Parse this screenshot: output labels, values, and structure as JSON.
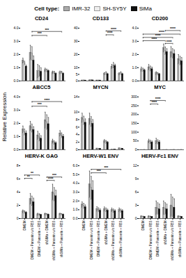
{
  "chart_data": {
    "type": "bar",
    "ylabel": "Relative Expression",
    "legend": "top",
    "legend_title": "Cell type:",
    "categories": [
      "DMEM",
      "DMEM + Panserin w/o FBS",
      "DMEM + Panserin + FBS",
      "shSiMa + DMEM",
      "shSiMa + Panserin w/o FBS",
      "shSiMa + Panserin + FBS"
    ],
    "panels": [
      {
        "title": "CD24",
        "ylim": [
          0,
          4
        ],
        "yticks": [
          0,
          1,
          2,
          3,
          4
        ],
        "series": [
          {
            "name": "IMR-32",
            "color": "#aaaaaa",
            "values": [
              1.55,
              2.15,
              0.75,
              0.85,
              0.65,
              0.65
            ],
            "errors": [
              0.18,
              0.55,
              0.5,
              0.12,
              0.1,
              0.1
            ]
          },
          {
            "name": "SH-SY5Y",
            "color": "#eeeeee",
            "values": [
              1.35,
              2.1,
              0.75,
              0.8,
              0.65,
              0.65
            ],
            "errors": [
              0.15,
              0.5,
              0.4,
              0.1,
              0.08,
              0.08
            ]
          },
          {
            "name": "SiMa",
            "color": "#111111",
            "values": [
              1.1,
              1.55,
              0.7,
              0.75,
              0.55,
              0.55
            ],
            "errors": [
              0.1,
              0.35,
              0.3,
              0.08,
              0.06,
              0.06
            ]
          }
        ],
        "annotations": [
          {
            "text": "***",
            "x1": "DMEM + Panserin w/o FBS",
            "x2": "shSiMa + DMEM",
            "y": 3.45
          },
          {
            "text": "***",
            "x1": "DMEM + Panserin w/o FBS",
            "x2": "shSiMa + Panserin + FBS",
            "y": 3.75
          }
        ]
      },
      {
        "title": "CD133",
        "ylim": [
          0,
          40
        ],
        "yticks": [
          0,
          5,
          10,
          20,
          30,
          40
        ],
        "series": [
          {
            "name": "IMR-32",
            "color": "#aaaaaa",
            "values": [
              0.5,
              0.6,
              0.5,
              5.5,
              11.0,
              5.5
            ],
            "errors": [
              0.08,
              0.08,
              0.08,
              0.8,
              1.5,
              0.8
            ]
          },
          {
            "name": "SH-SY5Y",
            "color": "#eeeeee",
            "values": [
              0.55,
              0.65,
              0.5,
              6.0,
              12.0,
              6.0
            ],
            "errors": [
              0.1,
              0.1,
              0.1,
              1.0,
              2.0,
              1.0
            ]
          },
          {
            "name": "SiMa",
            "color": "#111111",
            "values": [
              0.45,
              0.55,
              0.45,
              5.2,
              11.5,
              5.2
            ],
            "errors": [
              0.06,
              0.06,
              0.06,
              0.7,
              1.2,
              0.7
            ]
          }
        ],
        "annotations": [
          {
            "text": "****",
            "x1": "shSiMa + DMEM",
            "x2": "shSiMa + Panserin w/o FBS",
            "y": 35
          },
          {
            "text": "****",
            "x1": "shSiMa + DMEM",
            "x2": "shSiMa + Panserin + FBS",
            "y": 38
          }
        ]
      },
      {
        "title": "CD200",
        "ylim": [
          0,
          4
        ],
        "yticks": [
          0,
          1,
          2,
          3,
          4
        ],
        "series": [
          {
            "name": "IMR-32",
            "color": "#aaaaaa",
            "values": [
              0.9,
              1.05,
              0.6,
              2.5,
              2.2,
              1.65
            ],
            "errors": [
              0.15,
              0.2,
              0.1,
              0.3,
              0.4,
              0.35
            ]
          },
          {
            "name": "SH-SY5Y",
            "color": "#eeeeee",
            "values": [
              0.85,
              0.95,
              0.55,
              2.3,
              2.1,
              1.55
            ],
            "errors": [
              0.12,
              0.18,
              0.09,
              0.28,
              0.35,
              0.32
            ]
          },
          {
            "name": "SiMa",
            "color": "#111111",
            "values": [
              0.8,
              0.9,
              0.5,
              2.2,
              2.05,
              1.5
            ],
            "errors": [
              0.1,
              0.15,
              0.08,
              0.25,
              0.3,
              0.28
            ]
          }
        ],
        "annotations": [
          {
            "text": "****",
            "x1": "DMEM",
            "x2": "shSiMa + DMEM",
            "y": 3.05
          },
          {
            "text": "****",
            "x1": "DMEM",
            "x2": "shSiMa + Panserin w/o FBS",
            "y": 3.3
          },
          {
            "text": "****",
            "x1": "DMEM",
            "x2": "shSiMa + Panserin + FBS",
            "y": 3.55
          },
          {
            "text": "****",
            "x1": "shSiMa + DMEM",
            "x2": "shSiMa + Panserin w/o FBS",
            "y": 2.85
          },
          {
            "text": "****",
            "x1": "shSiMa + DMEM",
            "x2": "shSiMa + Panserin + FBS",
            "y": 3.82
          }
        ]
      },
      {
        "title": "ABCC5",
        "ylim": [
          0,
          4
        ],
        "yticks": [
          0,
          1,
          2,
          3,
          4
        ],
        "series": [
          {
            "name": "IMR-32",
            "color": "#aaaaaa",
            "values": [
              1.55,
              1.8,
              1.1,
              2.25,
              0.65,
              1.25
            ],
            "errors": [
              0.25,
              0.35,
              0.3,
              0.6,
              0.15,
              0.2
            ]
          },
          {
            "name": "SH-SY5Y",
            "color": "#eeeeee",
            "values": [
              1.35,
              1.65,
              0.95,
              2.1,
              0.55,
              1.1
            ],
            "errors": [
              0.22,
              0.3,
              0.28,
              0.55,
              0.12,
              0.18
            ]
          },
          {
            "name": "SiMa",
            "color": "#111111",
            "values": [
              1.25,
              1.5,
              0.85,
              1.95,
              0.5,
              1.0
            ],
            "errors": [
              0.18,
              0.25,
              0.22,
              0.5,
              0.1,
              0.15
            ]
          }
        ],
        "annotations": [
          {
            "text": "***",
            "x1": "DMEM + Panserin w/o FBS",
            "x2": "shSiMa + DMEM",
            "y": 3.3
          },
          {
            "text": "****",
            "x1": "DMEM + Panserin w/o FBS",
            "x2": "shSiMa + Panserin + FBS",
            "y": 3.65
          }
        ]
      },
      {
        "title": "MYCN",
        "ylim": [
          0,
          14
        ],
        "yticks": [
          0,
          2,
          4,
          6,
          8,
          10,
          14
        ],
        "series": [
          {
            "name": "IMR-32",
            "color": "#aaaaaa",
            "values": [
              8.5,
              8.2,
              0.35,
              2.3,
              0.05,
              0.4
            ],
            "errors": [
              1.2,
              1.5,
              0.05,
              0.4,
              0.01,
              0.06
            ]
          },
          {
            "name": "SH-SY5Y",
            "color": "#eeeeee",
            "values": [
              7.8,
              7.5,
              0.32,
              2.1,
              0.04,
              0.35
            ],
            "errors": [
              1.1,
              1.3,
              0.05,
              0.35,
              0.01,
              0.05
            ]
          },
          {
            "name": "SiMa",
            "color": "#111111",
            "values": [
              7.2,
              6.9,
              0.28,
              1.9,
              0.04,
              0.32
            ],
            "errors": [
              1.0,
              1.1,
              0.04,
              0.3,
              0.01,
              0.04
            ]
          }
        ],
        "annotations": []
      },
      {
        "title": "MYC",
        "ylim": [
          0,
          300
        ],
        "yticks": [
          0,
          50,
          100,
          150,
          200,
          250,
          300
        ],
        "series": [
          {
            "name": "IMR-32",
            "color": "#aaaaaa",
            "values": [
              0.05,
              50.0,
              50.0,
              0.05,
              0.05,
              0.05
            ],
            "errors": [
              0.01,
              10.0,
              15.0,
              0.01,
              0.01,
              0.01
            ]
          },
          {
            "name": "SH-SY5Y",
            "color": "#eeeeee",
            "values": [
              0.04,
              45.0,
              45.0,
              0.04,
              0.04,
              0.04
            ],
            "errors": [
              0.01,
              9.0,
              12.0,
              0.01,
              0.01,
              0.01
            ]
          },
          {
            "name": "SiMa",
            "color": "#111111",
            "values": [
              0.04,
              42.0,
              42.0,
              0.04,
              0.04,
              0.04
            ],
            "errors": [
              0.01,
              8.0,
              10.0,
              0.01,
              0.01,
              0.01
            ]
          }
        ],
        "annotations": [
          {
            "text": "****",
            "x1": "DMEM + Panserin w/o FBS",
            "x2": "DMEM + Panserin + FBS",
            "y": 260
          },
          {
            "text": "****",
            "x1": "DMEM + Panserin w/o FBS",
            "x2": "shSiMa + DMEM",
            "y": 280
          }
        ]
      },
      {
        "title": "HERV-K GAG",
        "ylim": [
          0,
          8
        ],
        "yticks": [
          0,
          2,
          4,
          6,
          8
        ],
        "series": [
          {
            "name": "IMR-32",
            "color": "#aaaaaa",
            "values": [
              1.1,
              3.0,
              0.65,
              0.7,
              4.0,
              0.7
            ],
            "errors": [
              0.2,
              0.8,
              0.15,
              0.12,
              1.2,
              0.12
            ]
          },
          {
            "name": "SH-SY5Y",
            "color": "#eeeeee",
            "values": [
              1.0,
              2.7,
              0.6,
              0.65,
              3.7,
              0.65
            ],
            "errors": [
              0.18,
              0.7,
              0.12,
              0.1,
              1.0,
              0.1
            ]
          },
          {
            "name": "SiMa",
            "color": "#111111",
            "values": [
              0.9,
              2.5,
              0.55,
              0.6,
              3.4,
              0.6
            ],
            "errors": [
              0.15,
              0.6,
              0.1,
              0.09,
              0.9,
              0.09
            ]
          }
        ],
        "annotations": [
          {
            "text": "**",
            "x1": "DMEM",
            "x2": "DMEM + Panserin w/o FBS",
            "y": 6.1
          },
          {
            "text": "**",
            "x1": "DMEM",
            "x2": "DMEM + Panserin + FBS",
            "y": 6.6
          },
          {
            "text": "****",
            "x1": "shSiMa + DMEM",
            "x2": "shSiMa + Panserin w/o FBS",
            "y": 5.8
          },
          {
            "text": "***",
            "x1": "shSiMa + DMEM",
            "x2": "shSiMa + Panserin + FBS",
            "y": 6.3
          }
        ]
      },
      {
        "title": "HERV-W1 ENV",
        "ylim": [
          0,
          6
        ],
        "yticks": [
          0,
          1,
          2,
          3,
          4,
          5,
          6
        ],
        "series": [
          {
            "name": "IMR-32",
            "color": "#aaaaaa",
            "values": [
              1.6,
              3.9,
              1.1,
              1.1,
              1.0,
              1.0
            ],
            "errors": [
              0.3,
              1.5,
              0.25,
              0.22,
              0.2,
              0.2
            ]
          },
          {
            "name": "SH-SY5Y",
            "color": "#eeeeee",
            "values": [
              1.45,
              3.5,
              1.0,
              1.0,
              0.9,
              0.9
            ],
            "errors": [
              0.28,
              1.3,
              0.22,
              0.2,
              0.18,
              0.18
            ]
          },
          {
            "name": "SiMa",
            "color": "#111111",
            "values": [
              1.3,
              3.2,
              0.9,
              0.9,
              0.85,
              0.85
            ],
            "errors": [
              0.25,
              1.1,
              0.2,
              0.18,
              0.15,
              0.15
            ]
          }
        ],
        "annotations": [
          {
            "text": "***",
            "x1": "DMEM + Panserin w/o FBS",
            "x2": "shSiMa + DMEM",
            "y": 5.2
          },
          {
            "text": "***",
            "x1": "DMEM + Panserin w/o FBS",
            "x2": "shSiMa + Panserin + FBS",
            "y": 5.6
          }
        ]
      },
      {
        "title": "HERV-Fc1 ENV",
        "ylim": [
          0,
          12
        ],
        "yticks": [
          0,
          3,
          6,
          9,
          12
        ],
        "series": [
          {
            "name": "IMR-32",
            "color": "#aaaaaa",
            "values": [
              0.5,
              0.5,
              2.5,
              2.5,
              3.0,
              0.5
            ],
            "errors": [
              0.1,
              0.1,
              1.5,
              1.5,
              2.5,
              0.1
            ]
          },
          {
            "name": "SH-SY5Y",
            "color": "#eeeeee",
            "values": [
              0.45,
              0.45,
              2.3,
              2.3,
              2.7,
              0.45
            ],
            "errors": [
              0.09,
              0.09,
              1.3,
              1.3,
              2.2,
              0.09
            ]
          },
          {
            "name": "SiMa",
            "color": "#111111",
            "values": [
              0.4,
              0.4,
              2.1,
              2.1,
              2.5,
              0.4
            ],
            "errors": [
              0.08,
              0.08,
              1.2,
              1.2,
              2.0,
              0.08
            ]
          }
        ],
        "annotations": []
      }
    ]
  }
}
